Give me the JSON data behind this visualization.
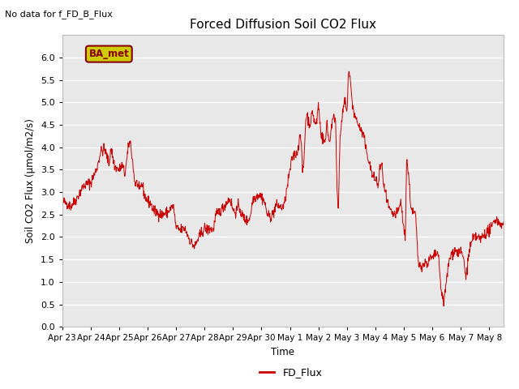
{
  "title": "Forced Diffusion Soil CO2 Flux",
  "top_left_text": "No data for f_FD_B_Flux",
  "ylabel": "Soil CO2 Flux (μmol/m2/s)",
  "xlabel": "Time",
  "legend_label": "FD_Flux",
  "ba_met_label": "BA_met",
  "ylim": [
    0.0,
    6.5
  ],
  "yticks": [
    0.0,
    0.5,
    1.0,
    1.5,
    2.0,
    2.5,
    3.0,
    3.5,
    4.0,
    4.5,
    5.0,
    5.5,
    6.0
  ],
  "line_color": "#cc0000",
  "plot_bg_color": "#e8e8e8",
  "fig_bg_color": "#ffffff",
  "grid_color": "#ffffff",
  "ba_met_bg": "#cccc00",
  "ba_met_text_color": "#880000",
  "n_points": 1200,
  "seed": 42,
  "tick_labels": [
    "Apr 23",
    "Apr 24",
    "Apr 25",
    "Apr 26",
    "Apr 27",
    "Apr 28",
    "Apr 29",
    "Apr 30",
    "May 1",
    "May 2",
    "May 3",
    "May 4",
    "May 5",
    "May 6",
    "May 7",
    "May 8"
  ]
}
